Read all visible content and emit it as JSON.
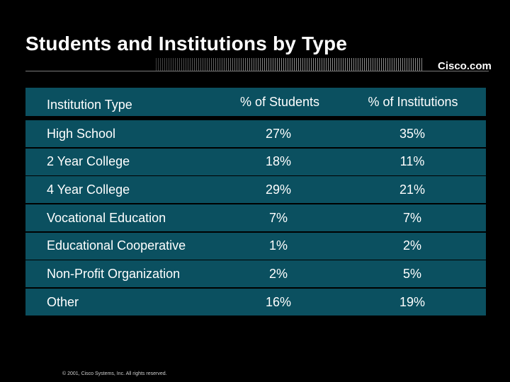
{
  "slide": {
    "title": "Students and Institutions by Type",
    "brand": "Cisco.com",
    "copyright": "© 2001, Cisco Systems, Inc. All rights reserved."
  },
  "table": {
    "headers": {
      "type": "Institution Type",
      "students": "% of Students",
      "institutions": "% of Institutions"
    },
    "rows": [
      {
        "type": "High School",
        "students": "27%",
        "institutions": "35%"
      },
      {
        "type": "2 Year College",
        "students": "18%",
        "institutions": "11%"
      },
      {
        "type": "4 Year College",
        "students": "29%",
        "institutions": "21%"
      },
      {
        "type": "Vocational Education",
        "students": "7%",
        "institutions": "7%"
      },
      {
        "type": "Educational Cooperative",
        "students": "1%",
        "institutions": "2%"
      },
      {
        "type": "Non-Profit Organization",
        "students": "2%",
        "institutions": "5%"
      },
      {
        "type": "Other",
        "students": "16%",
        "institutions": "19%"
      }
    ]
  },
  "colors": {
    "background": "#000000",
    "row_fill": "#0b5060",
    "text": "#ffffff"
  }
}
